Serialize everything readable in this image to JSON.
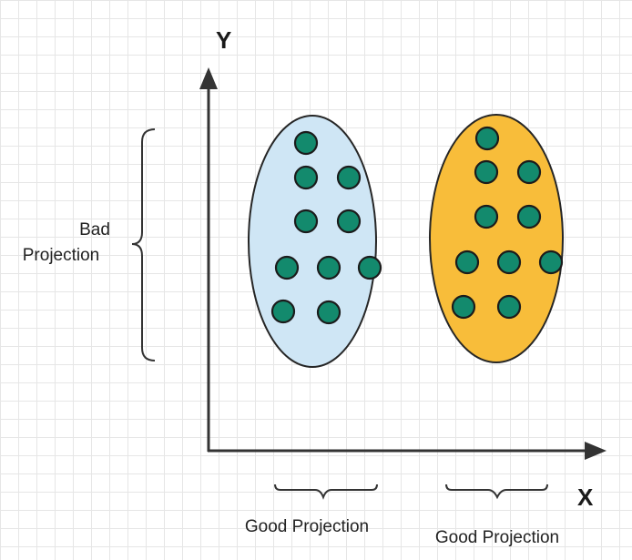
{
  "axes": {
    "x_label": "X",
    "y_label": "Y"
  },
  "annotations": {
    "bad_projection_line1": "Bad",
    "bad_projection_line2": "Projection",
    "good_projection_left": "Good Projection",
    "good_projection_right": "Good Projection"
  },
  "clusters": [
    {
      "name": "blue-cluster",
      "fill": "#cfe6f5",
      "points": 10
    },
    {
      "name": "orange-cluster",
      "fill": "#f8bd3a",
      "points": 10
    }
  ],
  "colors": {
    "point": "#138a6d",
    "grid": "#e6e6e6",
    "axis": "#333333"
  }
}
